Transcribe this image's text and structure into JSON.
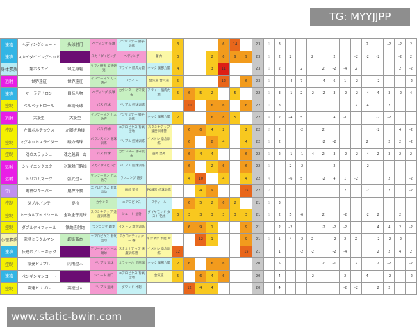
{
  "watermarks": {
    "top": "TG: MYYJJPP",
    "bottom": "www.static-bwin.com"
  },
  "colors": {
    "cyan": "#33b5e5",
    "magenta": "#e91ee6",
    "yellow": "#f4f000",
    "lightcyan": "#b7ecf5",
    "violet": "#c08ff0",
    "lightyellow": "#f7f5b3",
    "pink": "#f59ad0",
    "green": "#c7f0c1",
    "skycyan": "#c6f1f5",
    "paleyellow": "#fbf8a6",
    "purple": "#6b0d73",
    "heat_low": "#f8c81f",
    "heat_mid": "#f29b1d",
    "heat_high": "#e8661b",
    "heat_max": "#dd1f16"
  },
  "rows": [
    {
      "cat": "速攻",
      "cc": "cyan",
      "n1": "ヘディングシュート",
      "n2": "头球射门",
      "n2c": "green",
      "s": [
        [
          "ヘディング 头球",
          "pink"
        ],
        [
          "アンリミテー 狮子训练",
          "skycyan"
        ],
        [
          "",
          "white"
        ]
      ],
      "h": [
        3,
        null,
        null,
        null,
        6,
        14,
        null
      ],
      "t": 23,
      "m": 1,
      "d": [
        3,
        null,
        null,
        null,
        null,
        null,
        null,
        null,
        2,
        null,
        -2,
        -2,
        2
      ]
    },
    {
      "cat": "速攻",
      "cc": "cyan",
      "n1": "スカイダイビングヘッド",
      "n2": "",
      "n2c": "purple",
      "s": [
        [
          "スカイダイビング",
          "pink"
        ],
        [
          "ヘディング",
          "pink"
        ],
        [
          "蓄力",
          "paleyellow"
        ]
      ],
      "h": [
        3,
        null,
        null,
        2,
        6,
        9,
        9
      ],
      "t": 23,
      "m": 1,
      "d": [
        2,
        2,
        null,
        2,
        null,
        2,
        null,
        -2,
        -2,
        -2,
        null,
        -2,
        2
      ]
    },
    {
      "cat": "身体素质",
      "cc": "lightcyan",
      "n1": "謝ホダガイ",
      "n2": "飒之身躯",
      "n2c": "white",
      "s": [
        [
          "リフオ研究 灵感研究",
          "green"
        ],
        [
          "フライト 肌肉力量",
          "skycyan"
        ],
        [
          "キック 腿部力量",
          "skycyan"
        ]
      ],
      "h": [
        4,
        null,
        null,
        3,
        11,
        null,
        null
      ],
      "t": 23,
      "m": 1,
      "d": [
        2,
        null,
        2,
        null,
        2,
        -2,
        -4,
        2,
        null,
        null,
        null,
        2,
        -2
      ]
    },
    {
      "cat": "远射",
      "cc": "magenta",
      "n1": "世界遠征",
      "n2": "世界遠征",
      "n2c": "white",
      "s": [
        [
          "マンツーマン 盯人防守",
          "green"
        ],
        [
          "フライト",
          "skycyan"
        ],
        [
          "合気道 合气道",
          "paleyellow"
        ]
      ],
      "h": [
        5,
        null,
        null,
        null,
        12,
        null,
        6
      ],
      "t": 23,
      "m": 1,
      "d": [
        null,
        -4,
        7,
        null,
        -4,
        6,
        1,
        -2,
        null,
        -2,
        null,
        null,
        -2
      ]
    },
    {
      "cat": "速攻",
      "cc": "cyan",
      "n1": "オーラアドロン",
      "n2": "目标人物",
      "n2c": "white",
      "s": [
        [
          "ヘディング 头球",
          "pink"
        ],
        [
          "カウンター 防守反击",
          "green"
        ],
        [
          "フライト 肌肉力量",
          "skycyan"
        ]
      ],
      "h": [
        5,
        6,
        5,
        2,
        null,
        5,
        null
      ],
      "t": 22,
      "m": 1,
      "d": [
        3,
        -1,
        2,
        -2,
        -2,
        3,
        -2,
        -2,
        -4,
        4,
        3,
        -2,
        4
      ]
    },
    {
      "cat": "控制",
      "cc": "yellow",
      "n1": "ベルベットロール",
      "n2": "丝绒传球",
      "n2c": "white",
      "s": [
        [
          "パス 传球",
          "pink"
        ],
        [
          "ドリブル 控球训练",
          "skycyan"
        ],
        [
          "",
          "white"
        ]
      ],
      "h": [
        null,
        10,
        null,
        6,
        6,
        null,
        6
      ],
      "t": 22,
      "m": 1,
      "d": [
        3,
        null,
        null,
        null,
        null,
        null,
        null,
        2,
        -4,
        null,
        2,
        null,
        null
      ]
    },
    {
      "cat": "远射",
      "cc": "magenta",
      "n1": "大旋型",
      "n2": "大旋型",
      "n2c": "white",
      "s": [
        [
          "マンツーマン 盯人防守",
          "green"
        ],
        [
          "アンリミテー 狮子训练",
          "skycyan"
        ],
        [
          "キック 腿部力量",
          "skycyan"
        ]
      ],
      "h": [
        2,
        null,
        null,
        6,
        8,
        5,
        null
      ],
      "t": 22,
      "m": 4,
      "d": [
        2,
        -4,
        5,
        null,
        null,
        4,
        -1,
        null,
        null,
        -2,
        -2,
        null,
        null
      ]
    },
    {
      "cat": "控制",
      "cc": "yellow",
      "n1": "左脚ボルテックス",
      "n2": "左脚折角线",
      "n2c": "white",
      "s": [
        [
          "パス 传球",
          "pink"
        ],
        [
          "エアロビクス 有氧运动",
          "skycyan"
        ],
        [
          "スタミナアップ 速度训练营",
          "paleyellow"
        ]
      ],
      "h": [
        null,
        6,
        6,
        4,
        2,
        null,
        2
      ],
      "t": 22,
      "m": 2,
      "d": [
        2,
        null,
        -2,
        null,
        2,
        null,
        null,
        null,
        null,
        -2,
        null,
        4,
        -2
      ]
    },
    {
      "cat": "控制",
      "cc": "yellow",
      "n1": "マグネットスライダー",
      "n2": "磁力传球",
      "n2c": "white",
      "s": [
        [
          "バランスイン 眼球训练",
          "pink"
        ],
        [
          "ドリブル 控球训练",
          "skycyan"
        ],
        [
          "イメトレ 意念训练",
          "paleyellow"
        ]
      ],
      "h": [
        null,
        6,
        null,
        8,
        4,
        null,
        4
      ],
      "t": 22,
      "m": 1,
      "d": [
        2,
        null,
        null,
        null,
        -2,
        -2,
        null,
        null,
        2,
        null,
        2,
        2,
        -2
      ]
    },
    {
      "cat": "控制",
      "cc": "yellow",
      "n1": "魂のスラッシュ",
      "n2": "魂之越后一击",
      "n2c": "white",
      "s": [
        [
          "パス 传球",
          "pink"
        ],
        [
          "カウンター 防守反击",
          "green"
        ],
        [
          "画師 坚师",
          "paleyellow"
        ]
      ],
      "h": [
        null,
        6,
        4,
        4,
        null,
        null,
        6
      ],
      "t": 22,
      "m": 1,
      "d": [
        2,
        -1,
        -1,
        -4,
        2,
        3,
        -2,
        -2,
        -4,
        2,
        3,
        2,
        2
      ]
    },
    {
      "cat": "远射",
      "cc": "magenta",
      "n1": "シャイニングスター",
      "n2": "封球射门路线",
      "n2c": "white",
      "s": [
        [
          "スカイダイビング",
          "pink"
        ],
        [
          "ドリブル 控球训练",
          "skycyan"
        ],
        [
          "",
          "white"
        ]
      ],
      "h": [
        null,
        6,
        null,
        2,
        6,
        null,
        6
      ],
      "t": 22,
      "m": 1,
      "d": [
        null,
        2,
        -2,
        null,
        null,
        2,
        null,
        null,
        -2,
        null,
        null,
        null,
        null
      ]
    },
    {
      "cat": "远射",
      "cc": "magenta",
      "n1": "トリカムマーク",
      "n2": "弧式过人",
      "n2c": "white",
      "s": [
        [
          "マンツーマン 盯人防守",
          "green"
        ],
        [
          "ランニング 跑步",
          "skycyan"
        ],
        [
          "",
          "white"
        ]
      ],
      "h": [
        null,
        4,
        10,
        null,
        4,
        null,
        4
      ],
      "t": 22,
      "m": 4,
      "d": [
        null,
        -6,
        5,
        null,
        -2,
        4,
        1,
        -2,
        null,
        null,
        2,
        null,
        -2
      ]
    },
    {
      "cat": "守门",
      "cc": "violet",
      "n1": "鬼神のキーパー",
      "n2": "鬼神扑救",
      "n2c": "white",
      "s": [
        [
          "エアロビクス 有氧运动",
          "skycyan"
        ],
        [
          "画師 坚师",
          "paleyellow"
        ],
        [
          "PK練習 点球训练",
          "paleyellow"
        ]
      ],
      "h": [
        null,
        null,
        4,
        9,
        null,
        null,
        15
      ],
      "t": 22,
      "m": 2,
      "d": [
        null,
        null,
        null,
        null,
        null,
        null,
        2,
        null,
        -2,
        null,
        2,
        null,
        -2
      ]
    },
    {
      "cat": "控制",
      "cc": "yellow",
      "n1": "ダブルパンチ",
      "n2": "旋拉",
      "n2c": "white",
      "s": [
        [
          "カウンター",
          "green"
        ],
        [
          "エアロビクス",
          "skycyan"
        ],
        [
          "スティール",
          "skycyan"
        ]
      ],
      "h": [
        null,
        6,
        5,
        2,
        6,
        2,
        null
      ],
      "t": 21,
      "m": 1,
      "d": [
        3,
        null,
        null,
        null,
        null,
        null,
        null,
        null,
        null,
        null,
        null,
        null,
        null
      ]
    },
    {
      "cat": "控制",
      "cc": "yellow",
      "n1": "トータルアイドシール",
      "n2": "全攻全守足球",
      "n2c": "white",
      "s": [
        [
          "スタミナアップ 速度训练营",
          "paleyellow"
        ],
        [
          "シュート 远射",
          "pink"
        ],
        [
          "ダイヤモンド ダスト 钻线",
          "skycyan"
        ]
      ],
      "h": [
        3,
        3,
        3,
        3,
        3,
        3,
        3
      ],
      "t": 21,
      "m": 1,
      "d": [
        2,
        5,
        -6,
        null,
        2,
        null,
        -2,
        null,
        -2,
        2,
        null,
        2,
        null
      ]
    },
    {
      "cat": "控制",
      "cc": "yellow",
      "n1": "ダブルタイフォール",
      "n2": "铁炮连射炮",
      "n2c": "white",
      "s": [
        [
          "ランニング 跑步",
          "skycyan"
        ],
        [
          "イメトレ 意念训练",
          "paleyellow"
        ],
        [
          "",
          "white"
        ]
      ],
      "h": [
        null,
        6,
        9,
        1,
        null,
        null,
        9
      ],
      "t": 21,
      "m": null,
      "d": [
        2,
        -2,
        null,
        null,
        -2,
        -2,
        -2,
        null,
        null,
        4,
        4,
        2,
        -2
      ]
    },
    {
      "cat": "心理素质",
      "cc": "lightyellow",
      "n1": "究極ミラクルマン",
      "n2": "超级奋命",
      "n2c": "green",
      "s": [
        [
          "エアロビクス 有氧运动",
          "skycyan"
        ],
        [
          "アクロバティック 一 番",
          "paleyellow"
        ],
        [
          "ネタネタ 卡拉OK",
          "paleyellow"
        ]
      ],
      "h": [
        null,
        null,
        12,
        1,
        null,
        null,
        9
      ],
      "t": 21,
      "m": 1,
      "d": [
        1,
        4,
        -2,
        2,
        null,
        -2,
        2,
        2,
        null,
        -2,
        -2,
        -2,
        null
      ]
    },
    {
      "cat": "速攻",
      "cc": "cyan",
      "n1": "伝説のアリーキック",
      "n2": "",
      "n2c": "purple",
      "s": [
        [
          "アリーキック 一人踢球",
          "pink"
        ],
        [
          "スタミナアップ 速度训练营",
          "paleyellow"
        ],
        [
          "イメトレ 意念训练",
          "paleyellow"
        ]
      ],
      "h": [
        12,
        null,
        null,
        null,
        null,
        null,
        15
      ],
      "t": 21,
      "m": null,
      "d": [
        1,
        null,
        -2,
        -2,
        null,
        -2,
        -4,
        null,
        null,
        2,
        2,
        4,
        2
      ]
    },
    {
      "cat": "控制",
      "cc": "yellow",
      "n1": "稲妻ドリブル",
      "n2": "闪电过人",
      "n2c": "white",
      "s": [
        [
          "ドリブル 运球",
          "pink"
        ],
        [
          "ミラクール 卡丽瑞",
          "green"
        ],
        [
          "キック 腿部力量",
          "skycyan"
        ]
      ],
      "h": [
        2,
        6,
        null,
        6,
        6,
        null,
        null
      ],
      "t": 20,
      "m": null,
      "d": [
        5,
        null,
        null,
        null,
        2,
        -1,
        null,
        2,
        null,
        2,
        -2,
        null,
        -2
      ]
    },
    {
      "cat": "速攻",
      "cc": "cyan",
      "n1": "ペンギンマンコート",
      "n2": "",
      "n2c": "purple",
      "s": [
        [
          "シュート 射门",
          "pink"
        ],
        [
          "エアロビクス 有氧运动",
          "skycyan"
        ],
        [
          "合気道",
          "paleyellow"
        ]
      ],
      "h": [
        5,
        null,
        6,
        4,
        6,
        null,
        null
      ],
      "t": 20,
      "m": null,
      "d": [
        4,
        null,
        null,
        -2,
        null,
        null,
        2,
        null,
        4,
        null,
        -2,
        null,
        -2
      ]
    },
    {
      "cat": "控制",
      "cc": "yellow",
      "n1": "高速ドリブル",
      "n2": "高速过人",
      "n2c": "white",
      "s": [
        [
          "ドリブル 运球",
          "pink"
        ],
        [
          "ダワンド 冲刺",
          "skycyan"
        ],
        [
          "",
          "white"
        ]
      ],
      "h": [
        null,
        12,
        4,
        4,
        null,
        null,
        null
      ],
      "t": 20,
      "m": null,
      "d": [
        4,
        null,
        null,
        null,
        null,
        null,
        -2,
        -2,
        null,
        2,
        2,
        null,
        null
      ]
    }
  ]
}
